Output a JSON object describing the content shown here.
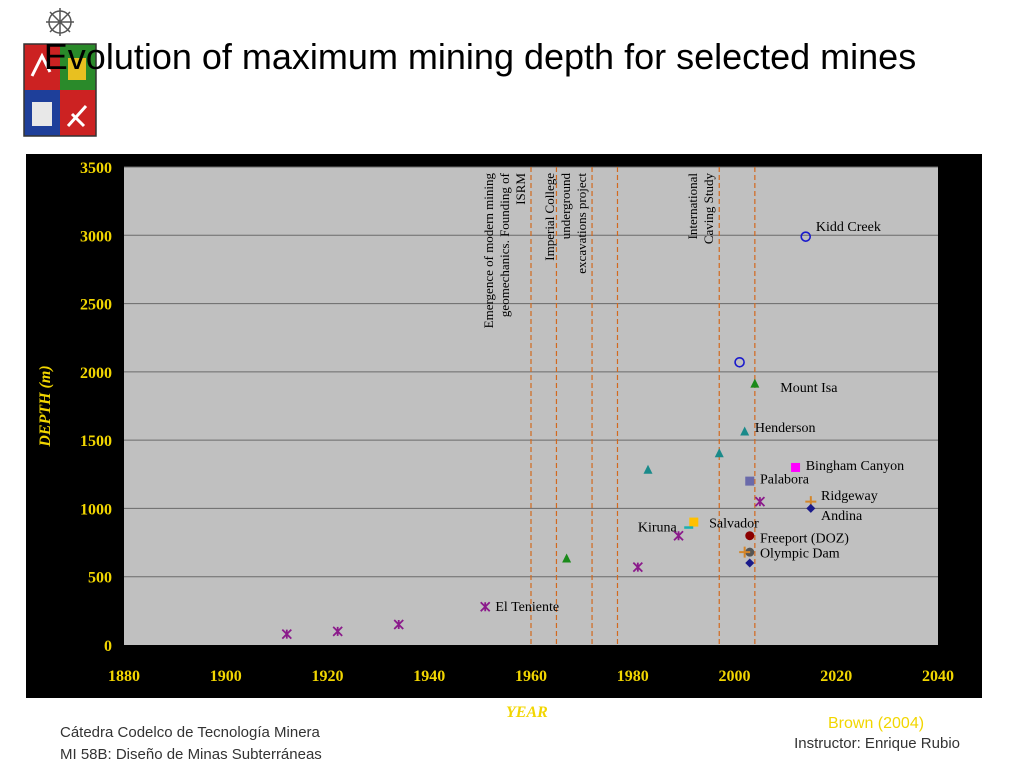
{
  "slide": {
    "title": "Evolution of maximum mining depth for selected mines",
    "footer_line1": "Cátedra Codelco de Tecnología Minera",
    "footer_line2": "MI 58B: Diseño de Minas Subterráneas",
    "instructor": "Instructor: Enrique Rubio",
    "source": "Brown (2004)"
  },
  "colors": {
    "background": "#000000",
    "plot_area": "#c0c0c0",
    "axis_text": "#f2d600",
    "event_line": "#d2691e"
  },
  "chart_data": {
    "type": "scatter",
    "title": "",
    "xlabel": "YEAR",
    "ylabel": "DEPTH (m)",
    "xlim": [
      1880,
      2040
    ],
    "ylim": [
      0,
      3500
    ],
    "x_ticks": [
      "1880",
      "1900",
      "1920",
      "1940",
      "1960",
      "1980",
      "2000",
      "2020",
      "2040"
    ],
    "y_ticks": [
      "0",
      "500",
      "1000",
      "1500",
      "2000",
      "2500",
      "3000",
      "3500"
    ],
    "grid": "horizontal",
    "events": [
      {
        "x": 1960,
        "label_lines": [
          "Emergence of modern mining",
          "geomechanics. Founding of",
          "ISRM"
        ]
      },
      {
        "x": 1965,
        "label_lines": []
      },
      {
        "x": 1972,
        "label_lines": [
          "Imperial College",
          "underground",
          "excavations project"
        ]
      },
      {
        "x": 1977,
        "label_lines": []
      },
      {
        "x": 1997,
        "label_lines": [
          "International",
          "Caving Study"
        ]
      },
      {
        "x": 2004,
        "label_lines": []
      }
    ],
    "series": [
      {
        "name": "El Teniente",
        "marker": "x",
        "color": "#8b1a8b",
        "points": [
          [
            1912,
            80
          ],
          [
            1922,
            100
          ],
          [
            1934,
            150
          ],
          [
            1951,
            280
          ],
          [
            1981,
            570
          ],
          [
            1989,
            800
          ],
          [
            2005,
            1050
          ]
        ],
        "label": {
          "text": "El Teniente",
          "x": 1953,
          "y": 280
        }
      },
      {
        "name": "Mount Isa",
        "marker": "triangle",
        "color": "#1a8a1a",
        "points": [
          [
            1967,
            630
          ],
          [
            2004,
            1910
          ]
        ],
        "label": {
          "text": "Mount Isa",
          "x": 2009,
          "y": 1880
        }
      },
      {
        "name": "Henderson",
        "marker": "triangle",
        "color": "#1a8a8a",
        "points": [
          [
            1983,
            1280
          ],
          [
            1997,
            1400
          ],
          [
            2002,
            1560
          ]
        ],
        "label": {
          "text": "Henderson",
          "x": 2004,
          "y": 1590
        }
      },
      {
        "name": "Kidd Creek",
        "marker": "circle",
        "color": "#1a1acc",
        "points": [
          [
            2001,
            2070
          ],
          [
            2014,
            2990
          ]
        ],
        "label": {
          "text": "Kidd Creek",
          "x": 2016,
          "y": 3060
        }
      },
      {
        "name": "Bingham Canyon",
        "marker": "square",
        "color": "#ff00ff",
        "points": [
          [
            2012,
            1300
          ]
        ],
        "label": {
          "text": "Bingham Canyon",
          "x": 2014,
          "y": 1310
        }
      },
      {
        "name": "Palabora",
        "marker": "square",
        "color": "#6a6aaa",
        "points": [
          [
            2003,
            1200
          ]
        ],
        "label": {
          "text": "Palabora",
          "x": 2005,
          "y": 1210
        }
      },
      {
        "name": "Ridgeway",
        "marker": "plus",
        "color": "#d4862a",
        "points": [
          [
            2015,
            1050
          ]
        ],
        "label": {
          "text": "Ridgeway",
          "x": 2017,
          "y": 1090
        }
      },
      {
        "name": "Andina",
        "marker": "diamond",
        "color": "#1a1a8a",
        "points": [
          [
            2015,
            1000
          ]
        ],
        "label": {
          "text": "Andina",
          "x": 2017,
          "y": 945
        }
      },
      {
        "name": "Salvador",
        "marker": "square",
        "color": "#ffc000",
        "points": [
          [
            1992,
            900
          ]
        ],
        "label": {
          "text": "Salvador",
          "x": 1995,
          "y": 890
        }
      },
      {
        "name": "Kiruna",
        "marker": "dash",
        "color": "#1ab0b0",
        "points": [
          [
            1991,
            860
          ]
        ],
        "label": {
          "text": "Kiruna",
          "x": 1981,
          "y": 860
        }
      },
      {
        "name": "Freeport (DOZ)",
        "marker": "circle-filled",
        "color": "#8b0000",
        "points": [
          [
            2003,
            800
          ]
        ],
        "label": {
          "text": "Freeport (DOZ)",
          "x": 2005,
          "y": 780
        }
      },
      {
        "name": "Olympic Dam",
        "marker": "circle-filled",
        "color": "#555555",
        "points": [
          [
            2003,
            680
          ]
        ],
        "label": {
          "text": "Olympic Dam",
          "x": 2005,
          "y": 670
        }
      },
      {
        "name": "",
        "marker": "plus",
        "color": "#d4862a",
        "points": [
          [
            2002,
            680
          ]
        ]
      },
      {
        "name": "",
        "marker": "diamond",
        "color": "#1a1a8a",
        "points": [
          [
            2003,
            600
          ]
        ]
      }
    ]
  }
}
